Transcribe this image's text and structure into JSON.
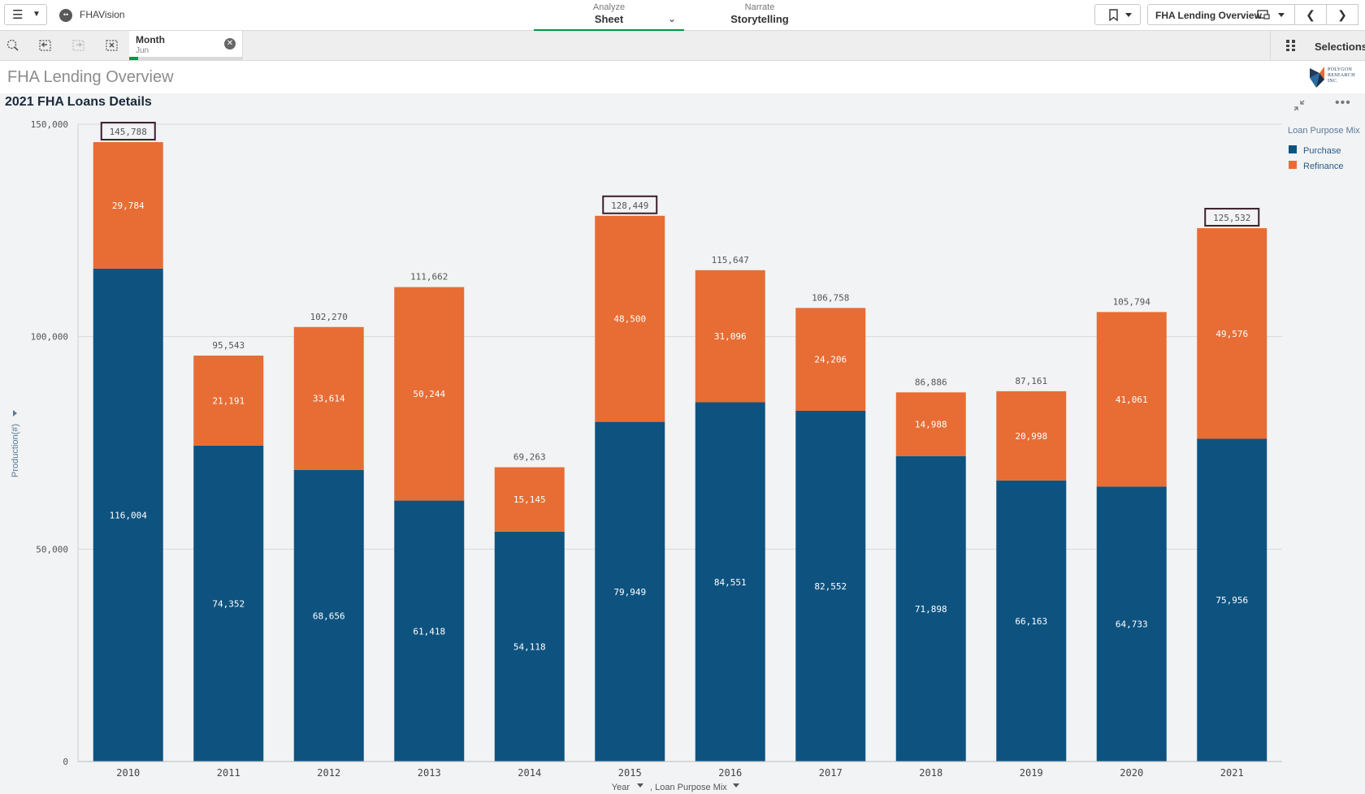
{
  "app": {
    "name": "FHAVision"
  },
  "nav": {
    "analyze": {
      "caption": "Analyze",
      "label": "Sheet"
    },
    "narrate": {
      "caption": "Narrate",
      "label": "Storytelling"
    }
  },
  "sheet_selector": {
    "label": "FHA Lending Overview"
  },
  "selection_chip": {
    "field": "Month",
    "value": "Jun",
    "progress": 0.08
  },
  "selections_button": {
    "label": "Selections"
  },
  "sheet": {
    "title": "FHA Lending Overview"
  },
  "logo": {
    "text": "POLYGON RESEARCH INC."
  },
  "colors": {
    "purchase": "#0e5380",
    "refinance": "#e76d35",
    "accent": "#009845"
  },
  "icons": [
    "menu-icon",
    "chevron-down-icon",
    "app-icon",
    "bookmark-icon",
    "sheet-icon",
    "chevron-left-icon",
    "chevron-right-icon",
    "lasso-icon",
    "step-back-icon",
    "step-forward-icon",
    "clear-selections-icon",
    "close-icon",
    "selections-icon",
    "collapse-icon",
    "more-icon"
  ],
  "chart_data": {
    "type": "bar",
    "stacked": true,
    "title": "2021 FHA Loans Details",
    "xlabel": "Year",
    "xlabel_suffix": ", Loan Purpose Mix",
    "ylabel": "Production(#)",
    "ylim": [
      0,
      150000
    ],
    "yticks": [
      "0",
      "50,000",
      "100,000",
      "150,000"
    ],
    "grid": true,
    "legend": {
      "title": "Loan Purpose Mix",
      "position": "right"
    },
    "categories": [
      "2010",
      "2011",
      "2012",
      "2013",
      "2014",
      "2015",
      "2016",
      "2017",
      "2018",
      "2019",
      "2020",
      "2021"
    ],
    "series": [
      {
        "name": "Purchase",
        "values": [
          116004,
          74352,
          68656,
          61418,
          54118,
          79949,
          84551,
          82552,
          71898,
          66163,
          64733,
          75956
        ],
        "labels": [
          "116,004",
          "74,352",
          "68,656",
          "61,418",
          "54,118",
          "79,949",
          "84,551",
          "82,552",
          "71,898",
          "66,163",
          "64,733",
          "75,956"
        ]
      },
      {
        "name": "Refinance",
        "values": [
          29784,
          21191,
          33614,
          50244,
          15145,
          48500,
          31096,
          24206,
          14988,
          20998,
          41061,
          49576
        ],
        "labels": [
          "29,784",
          "21,191",
          "33,614",
          "50,244",
          "15,145",
          "48,500",
          "31,096",
          "24,206",
          "14,988",
          "20,998",
          "41,061",
          "49,576"
        ]
      }
    ],
    "totals": [
      145788,
      95543,
      102270,
      111662,
      69263,
      128449,
      115647,
      106758,
      86886,
      87161,
      105794,
      125532
    ],
    "total_labels": [
      "145,788",
      "95,543",
      "102,270",
      "111,662",
      "69,263",
      "128,449",
      "115,647",
      "106,758",
      "86,886",
      "87,161",
      "105,794",
      "125,532"
    ],
    "highlighted_totals": [
      "2010",
      "2015",
      "2021"
    ]
  }
}
